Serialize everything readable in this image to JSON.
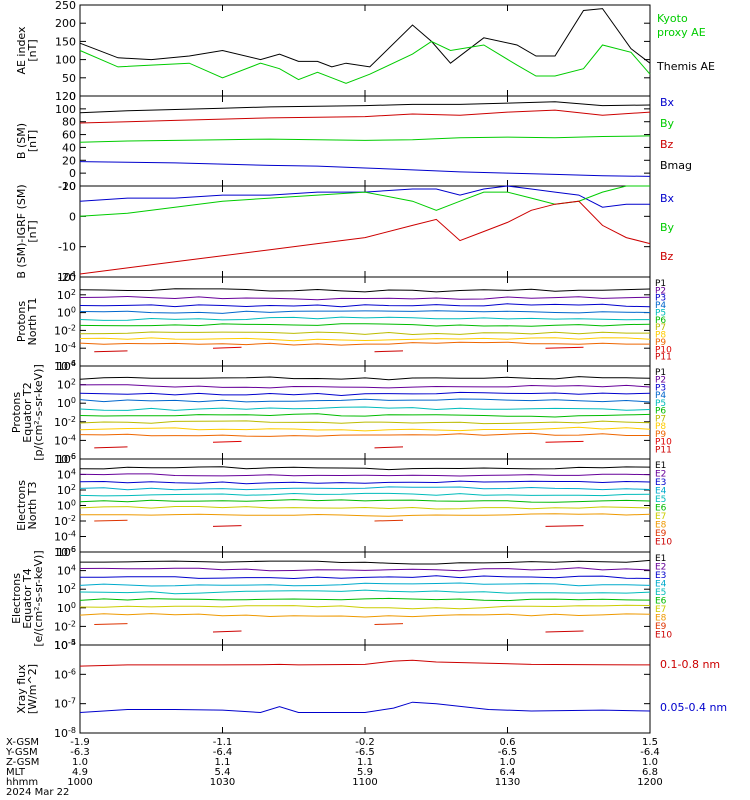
{
  "chart_data": [
    {
      "type": "line",
      "ylabel": "AE index [nT]",
      "ylim": [
        0,
        250
      ],
      "yticks": [
        "0",
        "50",
        "100",
        "150",
        "200",
        "250"
      ],
      "x": [
        0,
        8,
        15,
        23,
        30,
        38,
        42,
        46,
        50,
        53,
        56,
        61,
        70,
        74,
        78,
        85,
        92,
        96,
        100,
        106,
        110,
        116,
        120
      ],
      "series": [
        {
          "name": "Themis AE",
          "color": "#000000",
          "values": [
            145,
            105,
            100,
            110,
            125,
            100,
            115,
            95,
            95,
            80,
            90,
            80,
            195,
            150,
            90,
            160,
            140,
            110,
            110,
            235,
            240,
            130,
            90
          ]
        },
        {
          "name": "Kyoto proxy AE",
          "color": "#00cc00",
          "values": [
            125,
            80,
            85,
            90,
            50,
            90,
            75,
            45,
            65,
            50,
            35,
            60,
            115,
            150,
            125,
            140,
            85,
            55,
            55,
            75,
            140,
            120,
            60
          ]
        }
      ],
      "legend": [
        "Kyoto",
        "proxy AE",
        "Themis AE"
      ]
    },
    {
      "type": "line",
      "ylabel": "B (SM) [nT]",
      "ylim": [
        -20,
        120
      ],
      "yticks": [
        "-20",
        "0",
        "20",
        "40",
        "60",
        "80",
        "100",
        "120"
      ],
      "x": [
        0,
        10,
        20,
        30,
        40,
        50,
        60,
        70,
        80,
        90,
        100,
        110,
        120
      ],
      "series": [
        {
          "name": "Bx",
          "color": "#0000cc",
          "values": [
            18,
            17,
            16,
            14,
            12,
            11,
            8,
            5,
            2,
            0,
            -2,
            -4,
            -5
          ]
        },
        {
          "name": "By",
          "color": "#00cc00",
          "values": [
            48,
            50,
            51,
            52,
            53,
            52,
            51,
            52,
            55,
            56,
            55,
            57,
            58
          ]
        },
        {
          "name": "Bz",
          "color": "#cc0000",
          "values": [
            78,
            80,
            82,
            84,
            86,
            87,
            88,
            92,
            90,
            95,
            98,
            90,
            95
          ]
        },
        {
          "name": "Bmag",
          "color": "#000000",
          "values": [
            94,
            97,
            99,
            101,
            103,
            104,
            105,
            107,
            107,
            109,
            111,
            105,
            106
          ]
        }
      ]
    },
    {
      "type": "line",
      "ylabel": "B (SM)-IGRF (SM) [nT]",
      "ylim": [
        -20,
        10
      ],
      "yticks": [
        "-20",
        "-10",
        "0",
        "10"
      ],
      "x": [
        0,
        10,
        20,
        30,
        40,
        50,
        60,
        70,
        75,
        80,
        85,
        90,
        95,
        100,
        105,
        110,
        115,
        120
      ],
      "series": [
        {
          "name": "Bx",
          "color": "#0000cc",
          "values": [
            5,
            6,
            6,
            7,
            7,
            8,
            8,
            9,
            9,
            7,
            9,
            10,
            9,
            8,
            7,
            3,
            4,
            4
          ]
        },
        {
          "name": "By",
          "color": "#00cc00",
          "values": [
            0,
            1,
            3,
            5,
            6,
            7,
            8,
            5,
            2,
            5,
            8,
            8,
            6,
            4,
            5,
            8,
            10,
            10
          ]
        },
        {
          "name": "Bz",
          "color": "#cc0000",
          "values": [
            -19,
            -17,
            -15,
            -13,
            -11,
            -9,
            -7,
            -3,
            -1,
            -8,
            -5,
            -2,
            2,
            4,
            5,
            -3,
            -7,
            -9
          ]
        }
      ]
    },
    {
      "type": "line",
      "ylabel": "Protons North T1",
      "log_scale": true,
      "ylim_exp": [
        -6,
        4
      ],
      "yticks": [
        "10-6",
        "10-4",
        "10-2",
        "100",
        "102",
        "104"
      ],
      "legend_names": [
        "P1",
        "P2",
        "P3",
        "P4",
        "P5",
        "P6",
        "P7",
        "P8",
        "P9",
        "P10",
        "P11"
      ],
      "legend_colors": [
        "#000000",
        "#660099",
        "#0000cc",
        "#0066cc",
        "#00bbbb",
        "#00bb00",
        "#bbbb00",
        "#ffcc00",
        "#ee6600",
        "#dd0000",
        "#cc0000"
      ],
      "series_levels": [
        2.5,
        1.6,
        0.8,
        0.1,
        -0.7,
        -1.4,
        -2.3,
        -3.0,
        -3.5,
        -4.0,
        -4.4
      ]
    },
    {
      "type": "line",
      "ylabel": "Protons Equator T2 [p/(cm2-s-sr-keV)]",
      "log_scale": true,
      "ylim_exp": [
        -6,
        4
      ],
      "yticks": [
        "10-6",
        "10-4",
        "10-2",
        "100",
        "102",
        "104"
      ],
      "legend_names": [
        "P1",
        "P2",
        "P3",
        "P4",
        "P5",
        "P6",
        "P7",
        "P8",
        "P9",
        "P10",
        "P11"
      ],
      "legend_colors": [
        "#000000",
        "#660099",
        "#0000cc",
        "#0066cc",
        "#00bbbb",
        "#00bb00",
        "#bbbb00",
        "#ffcc00",
        "#ee6600",
        "#dd0000",
        "#cc0000"
      ],
      "series_levels": [
        2.7,
        1.8,
        1.0,
        0.3,
        -0.6,
        -1.3,
        -2.1,
        -2.8,
        -3.4,
        -4.2,
        -4.8
      ]
    },
    {
      "type": "line",
      "ylabel": "Electrons North T3",
      "log_scale": true,
      "ylim_exp": [
        -6,
        6
      ],
      "yticks": [
        "10-6",
        "10-4",
        "10-2",
        "100",
        "102",
        "104",
        "106"
      ],
      "legend_names": [
        "E1",
        "E2",
        "E3",
        "E4",
        "E5",
        "E6",
        "E7",
        "E8",
        "E9",
        "E10"
      ],
      "legend_colors": [
        "#000000",
        "#660099",
        "#0000cc",
        "#00aacc",
        "#00bbbb",
        "#00bb00",
        "#cccc00",
        "#ee9900",
        "#dd3300",
        "#cc0000"
      ],
      "series_levels": [
        4.8,
        3.9,
        3.0,
        2.2,
        1.4,
        0.6,
        -0.3,
        -1.2,
        -2.0,
        -2.7
      ]
    },
    {
      "type": "line",
      "ylabel": "Electrons Equator T4 [e/(cm2-s-sr-keV)]",
      "log_scale": true,
      "ylim_exp": [
        -4,
        6
      ],
      "yticks": [
        "10-4",
        "10-2",
        "100",
        "102",
        "104",
        "106"
      ],
      "legend_names": [
        "E1",
        "E2",
        "E3",
        "E4",
        "E5",
        "E6",
        "E7",
        "E8",
        "E9",
        "E10"
      ],
      "legend_colors": [
        "#000000",
        "#660099",
        "#0000cc",
        "#00aacc",
        "#00bbbb",
        "#00bb00",
        "#cccc00",
        "#ee9900",
        "#dd3300",
        "#cc0000"
      ],
      "series_levels": [
        4.9,
        4.1,
        3.3,
        2.5,
        1.7,
        0.9,
        0.1,
        -0.8,
        -1.8,
        -2.6
      ]
    },
    {
      "type": "line",
      "ylabel": "Xray flux [W/m^2]",
      "log_scale": true,
      "ylim_exp": [
        -8,
        -5
      ],
      "yticks": [
        "10-8",
        "10-7",
        "10-6",
        "10-5"
      ],
      "x": [
        0,
        10,
        20,
        30,
        38,
        42,
        46,
        60,
        66,
        70,
        75,
        86,
        95,
        110,
        120
      ],
      "series": [
        {
          "name": "0.1-0.8 nm",
          "color": "#cc0000",
          "values": [
            -5.72,
            -5.68,
            -5.68,
            -5.68,
            -5.67,
            -5.66,
            -5.68,
            -5.66,
            -5.55,
            -5.52,
            -5.58,
            -5.62,
            -5.66,
            -5.67,
            -5.68
          ]
        },
        {
          "name": "0.05-0.4 nm",
          "color": "#0000cc",
          "values": [
            -7.3,
            -7.2,
            -7.2,
            -7.22,
            -7.3,
            -7.1,
            -7.3,
            -7.3,
            -7.15,
            -6.95,
            -7.0,
            -7.2,
            -7.25,
            -7.22,
            -7.25
          ]
        }
      ]
    }
  ],
  "legends": {
    "p1": [
      "Kyoto",
      "proxy AE",
      "Themis AE"
    ],
    "p2": [
      "Bx",
      "By",
      "Bz",
      "Bmag"
    ],
    "p3": [
      "Bx",
      "By",
      "Bz"
    ],
    "p8": [
      "0.1-0.8 nm",
      "0.05-0.4 nm"
    ]
  },
  "ylabels": {
    "p1": [
      "AE index",
      "[nT]"
    ],
    "p2": [
      "B (SM)",
      "[nT]"
    ],
    "p3": [
      "B (SM)-IGRF (SM)",
      "[nT]"
    ],
    "p4": [
      "Protons",
      "North T1"
    ],
    "p5": [
      "Protons",
      "Equator T2",
      "[p/(cm²-s-sr-keV)]"
    ],
    "p6": [
      "Electrons",
      "North T3"
    ],
    "p7": [
      "Electrons",
      "Equator T4",
      "[e/(cm²-s-sr-keV)]"
    ],
    "p8": [
      "Xray flux",
      "[W/m^2]"
    ]
  },
  "footer": {
    "row_labels": [
      "X-GSM",
      "Y-GSM",
      "Z-GSM",
      "MLT",
      "hhmm",
      "2024 Mar 22"
    ],
    "columns": [
      [
        "-1.9",
        "-6.3",
        "1.0",
        "4.9",
        "1000"
      ],
      [
        "-1.1",
        "-6.4",
        "1.1",
        "5.4",
        "1030"
      ],
      [
        "-0.2",
        "-6.5",
        "1.1",
        "5.9",
        "1100"
      ],
      [
        "0.6",
        "-6.5",
        "1.0",
        "6.4",
        "1130"
      ],
      [
        "1.5",
        "-6.4",
        "1.0",
        "6.8",
        "1200"
      ]
    ]
  }
}
